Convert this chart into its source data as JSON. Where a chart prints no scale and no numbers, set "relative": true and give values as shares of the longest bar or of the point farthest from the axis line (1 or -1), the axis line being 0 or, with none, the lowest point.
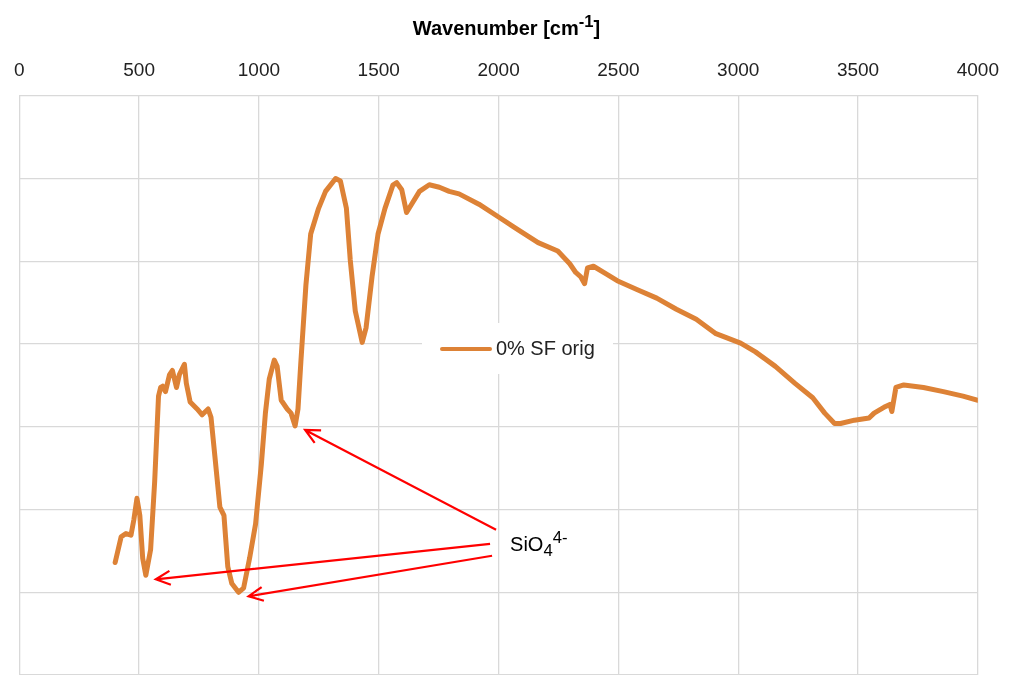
{
  "chart_data": {
    "type": "line",
    "xlabel": "Wavenumber [cm$^{-1}$]",
    "relative": true,
    "xlim": [
      0,
      4000
    ],
    "xticks": [
      0,
      500,
      1000,
      1500,
      2000,
      2500,
      3000,
      3500,
      4000
    ],
    "grid": true,
    "legend": "center",
    "marker": "none",
    "line_style": "solid",
    "annotations": [
      "SiO$_{4}$$^{4-}$"
    ],
    "series": [
      {
        "name": "0% SF orig",
        "color": "#dd8236",
        "x": [
          400,
          425,
          445,
          466,
          478,
          491,
          503,
          515,
          528,
          548,
          565,
          581,
          590,
          598,
          610,
          627,
          639,
          656,
          668,
          689,
          697,
          713,
          742,
          763,
          788,
          800,
          816,
          837,
          854,
          870,
          887,
          915,
          936,
          961,
          986,
          1010,
          1027,
          1043,
          1064,
          1076,
          1093,
          1118,
          1134,
          1151,
          1163,
          1175,
          1196,
          1216,
          1249,
          1278,
          1320,
          1340,
          1365,
          1381,
          1402,
          1431,
          1447,
          1472,
          1497,
          1526,
          1559,
          1575,
          1596,
          1616,
          1637,
          1670,
          1711,
          1753,
          1794,
          1835,
          1918,
          2000,
          2082,
          2165,
          2247,
          2297,
          2322,
          2342,
          2359,
          2371,
          2396,
          2454,
          2495,
          2577,
          2660,
          2742,
          2825,
          2907,
          3010,
          3072,
          3155,
          3237,
          3311,
          3361,
          3402,
          3427,
          3485,
          3546,
          3567,
          3608,
          3633,
          3641,
          3658,
          3691,
          3773,
          3856,
          3938,
          4000
        ],
        "values": [
          0.072,
          0.134,
          0.142,
          0.138,
          0.175,
          0.227,
          0.186,
          0.082,
          0.041,
          0.103,
          0.268,
          0.474,
          0.495,
          0.498,
          0.485,
          0.526,
          0.536,
          0.495,
          0.526,
          0.551,
          0.505,
          0.46,
          0.443,
          0.429,
          0.443,
          0.423,
          0.33,
          0.206,
          0.186,
          0.062,
          0.021,
          0,
          0.01,
          0.082,
          0.165,
          0.309,
          0.433,
          0.515,
          0.561,
          0.546,
          0.464,
          0.443,
          0.433,
          0.402,
          0.443,
          0.557,
          0.742,
          0.866,
          0.928,
          0.969,
          1,
          0.994,
          0.928,
          0.804,
          0.68,
          0.604,
          0.639,
          0.763,
          0.866,
          0.928,
          0.984,
          0.99,
          0.973,
          0.918,
          0.938,
          0.969,
          0.985,
          0.979,
          0.969,
          0.963,
          0.938,
          0.907,
          0.876,
          0.845,
          0.825,
          0.794,
          0.773,
          0.763,
          0.746,
          0.784,
          0.788,
          0.768,
          0.753,
          0.732,
          0.711,
          0.684,
          0.66,
          0.625,
          0.602,
          0.581,
          0.546,
          0.505,
          0.47,
          0.433,
          0.408,
          0.408,
          0.416,
          0.421,
          0.433,
          0.447,
          0.454,
          0.437,
          0.495,
          0.501,
          0.495,
          0.485,
          0.474,
          0.464
        ]
      }
    ]
  }
}
